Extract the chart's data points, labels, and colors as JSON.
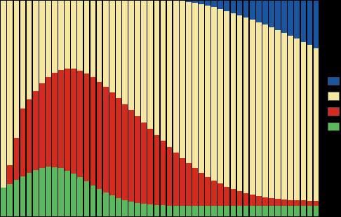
{
  "n_bars": 50,
  "colors_order": [
    "green",
    "red",
    "yellow",
    "blue"
  ],
  "colors": {
    "blue": "#1a55a0",
    "yellow": "#f5e6a0",
    "red": "#d42b20",
    "green": "#5cb85c"
  },
  "background_color": "#000000",
  "figsize": [
    4.86,
    3.1
  ],
  "dpi": 100
}
